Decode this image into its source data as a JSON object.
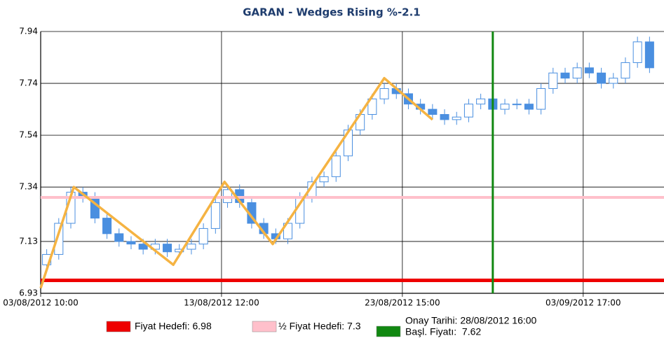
{
  "chart_data": {
    "type": "candlestick",
    "title": "GARAN - Wedges Rising %-2.1",
    "x": [
      1,
      3,
      5,
      7,
      9,
      11,
      13,
      15,
      17,
      19,
      21,
      23,
      25,
      27,
      29,
      31,
      33,
      35,
      37,
      39,
      41,
      43,
      45,
      47,
      49,
      51,
      53,
      55,
      57,
      59,
      61,
      63,
      65,
      67,
      69,
      71,
      73,
      75,
      77,
      79,
      81,
      83,
      85,
      87,
      89,
      91,
      93,
      95,
      97,
      99,
      101
    ],
    "open": [
      7.04,
      7.08,
      7.2,
      7.32,
      7.3,
      7.22,
      7.16,
      7.13,
      7.12,
      7.1,
      7.12,
      7.09,
      7.1,
      7.12,
      7.18,
      7.28,
      7.33,
      7.28,
      7.2,
      7.16,
      7.14,
      7.2,
      7.3,
      7.36,
      7.38,
      7.46,
      7.56,
      7.62,
      7.68,
      7.72,
      7.7,
      7.66,
      7.64,
      7.62,
      7.6,
      7.61,
      7.66,
      7.68,
      7.64,
      7.66,
      7.66,
      7.64,
      7.72,
      7.78,
      7.76,
      7.8,
      7.78,
      7.74,
      7.76,
      7.82,
      7.9
    ],
    "high": [
      7.1,
      7.22,
      7.34,
      7.34,
      7.32,
      7.24,
      7.18,
      7.15,
      7.14,
      7.14,
      7.14,
      7.12,
      7.14,
      7.2,
      7.3,
      7.35,
      7.35,
      7.3,
      7.22,
      7.18,
      7.22,
      7.32,
      7.38,
      7.4,
      7.48,
      7.58,
      7.64,
      7.7,
      7.74,
      7.74,
      7.72,
      7.68,
      7.66,
      7.64,
      7.63,
      7.68,
      7.7,
      7.7,
      7.68,
      7.68,
      7.68,
      7.74,
      7.8,
      7.8,
      7.82,
      7.82,
      7.8,
      7.78,
      7.84,
      7.92,
      7.92
    ],
    "low": [
      7.02,
      7.06,
      7.18,
      7.28,
      7.2,
      7.14,
      7.11,
      7.1,
      7.08,
      7.08,
      7.07,
      7.07,
      7.08,
      7.1,
      7.16,
      7.26,
      7.26,
      7.18,
      7.14,
      7.12,
      7.12,
      7.18,
      7.28,
      7.34,
      7.36,
      7.44,
      7.54,
      7.6,
      7.66,
      7.68,
      7.64,
      7.62,
      7.6,
      7.58,
      7.58,
      7.59,
      7.64,
      7.62,
      7.62,
      7.64,
      7.62,
      7.62,
      7.7,
      7.74,
      7.74,
      7.76,
      7.72,
      7.72,
      7.74,
      7.8,
      7.78
    ],
    "close": [
      7.08,
      7.2,
      7.32,
      7.3,
      7.22,
      7.16,
      7.13,
      7.12,
      7.1,
      7.12,
      7.09,
      7.1,
      7.12,
      7.18,
      7.28,
      7.33,
      7.28,
      7.2,
      7.16,
      7.14,
      7.2,
      7.3,
      7.36,
      7.38,
      7.46,
      7.56,
      7.62,
      7.68,
      7.72,
      7.7,
      7.66,
      7.64,
      7.62,
      7.6,
      7.61,
      7.66,
      7.68,
      7.64,
      7.66,
      7.66,
      7.64,
      7.72,
      7.78,
      7.76,
      7.8,
      7.78,
      7.74,
      7.76,
      7.82,
      7.9,
      7.8
    ],
    "candle_color": "#4a8fe0",
    "wedge": {
      "color": "#f5b342",
      "x": [
        0,
        5.5,
        22,
        30.5,
        38.5,
        57,
        65
      ],
      "values": [
        6.95,
        7.34,
        7.04,
        7.36,
        7.12,
        7.76,
        7.6
      ]
    },
    "levels": [
      {
        "name": "Fiyat Hedefi: 6.98",
        "value": 6.98,
        "color": "#ee0000"
      },
      {
        "name": "½ Fiyat Hedefi: 7.3",
        "value": 7.3,
        "color": "#ffc0cb"
      }
    ],
    "signal": {
      "name": [
        "Onay Tarihi: 28/08/2012 16:00",
        "Başl. Fiyatı:  7.62"
      ],
      "x": 75,
      "price": 7.62,
      "color": "#118811"
    },
    "xlim": [
      0,
      103.4
    ],
    "ylim": [
      6.93,
      7.94
    ],
    "xticks": [
      {
        "value": 0,
        "label": "03/08/2012 10:00"
      },
      {
        "value": 30,
        "label": "13/08/2012 12:00"
      },
      {
        "value": 60,
        "label": "23/08/2012 15:00"
      },
      {
        "value": 90,
        "label": "03/09/2012 17:00"
      }
    ],
    "yticks": [
      7.94,
      7.74,
      7.54,
      7.34,
      7.13,
      6.93
    ],
    "grid": true
  }
}
